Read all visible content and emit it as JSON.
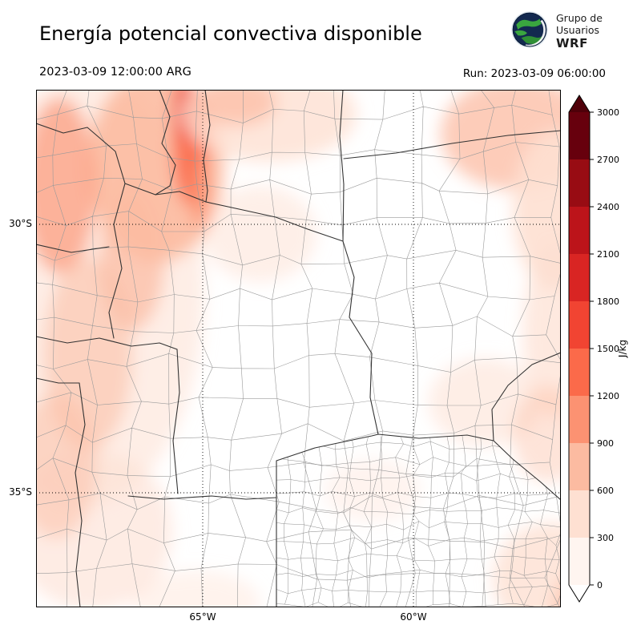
{
  "header": {
    "title": "Energía potencial convectiva disponible",
    "logo": {
      "org_line1": "Grupo de",
      "org_line2": "Usuarios",
      "org_line3": "WRF"
    }
  },
  "timestamps": {
    "valid": "2023-03-09 12:00:00 ARG",
    "run": "Run: 2023-03-09 06:00:00"
  },
  "map": {
    "lat_labels": [
      "30°S",
      "35°S"
    ],
    "lon_labels": [
      "65°W",
      "60°W"
    ]
  },
  "colorbar": {
    "unit": "J/kg",
    "ticks": [
      "0",
      "300",
      "600",
      "900",
      "1200",
      "1500",
      "1800",
      "2100",
      "2400",
      "2700",
      "3000"
    ],
    "band_colors": [
      "#fff5f0",
      "#fee0d2",
      "#fcbba1",
      "#fc9272",
      "#fb6a4a",
      "#f14432",
      "#d92523",
      "#bc141a",
      "#980c13",
      "#67000d"
    ],
    "over_arrow_color": "#4f0009",
    "under_arrow_color": "#ffffff",
    "outline_color": "#000000"
  },
  "chart_data": {
    "type": "heatmap",
    "title": "Energía potencial convectiva disponible",
    "units": "J/kg",
    "levels": [
      0,
      300,
      600,
      900,
      1200,
      1500,
      1800,
      2100,
      2400,
      2700,
      3000
    ],
    "colormap_hex": [
      "#fff5f0",
      "#fee0d2",
      "#fcbba1",
      "#fc9272",
      "#fb6a4a",
      "#f14432",
      "#d92523",
      "#bc141a",
      "#980c13",
      "#67000d"
    ],
    "valid_time": "2023-03-09 12:00:00 ARG",
    "run_time": "2023-03-09 06:00:00",
    "lat_ticks": [
      "30°S",
      "35°S"
    ],
    "lon_ticks": [
      "65°W",
      "60°W"
    ],
    "legend_position": "right"
  }
}
